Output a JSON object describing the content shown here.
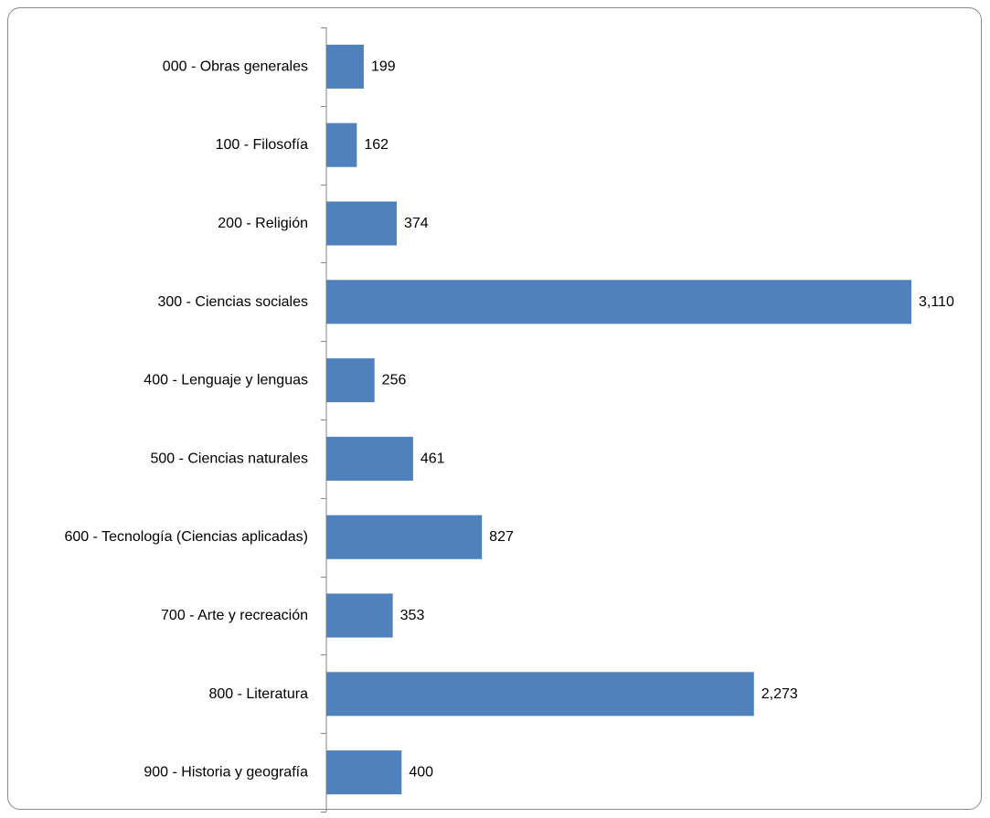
{
  "chart_data": {
    "type": "bar",
    "orientation": "horizontal",
    "title": "",
    "xlabel": "",
    "ylabel": "",
    "categories": [
      "000 - Obras generales",
      "100 - Filosofía",
      "200 - Religión",
      "300 - Ciencias sociales",
      "400 - Lenguaje y lenguas",
      "500 - Ciencias naturales",
      "600 - Tecnología (Ciencias aplicadas)",
      "700 - Arte y recreación",
      "800 - Literatura",
      "900 - Historia y geografía"
    ],
    "values": [
      199,
      162,
      374,
      3110,
      256,
      461,
      827,
      353,
      2273,
      400
    ],
    "value_labels": [
      "199",
      "162",
      "374",
      "3,110",
      "256",
      "461",
      "827",
      "353",
      "2,273",
      "400"
    ],
    "xlim": [
      0,
      3110
    ],
    "grid": false,
    "legend": "none",
    "bar_color": "#4f81bd",
    "axis_color": "#868686"
  }
}
